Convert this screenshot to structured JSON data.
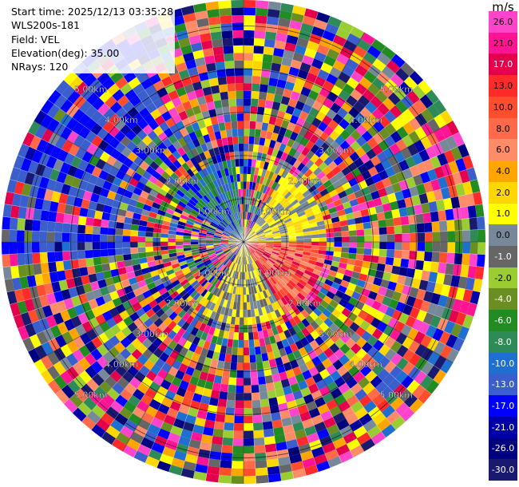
{
  "info": {
    "start_time": "Start time: 2025/12/13 03:35:28",
    "station": "WLS200s-181",
    "field": "Field: VEL",
    "elevation": "Elevation(deg): 35.00",
    "nrays": "NRays: 120"
  },
  "range_labels": [
    "1.00km",
    "2.00km",
    "3.00km",
    "4.00km",
    "5.00km"
  ],
  "colorbar": {
    "unit": "m/s",
    "ticks": [
      "26.0",
      "21.0",
      "17.0",
      "13.0",
      "10.0",
      "8.0",
      "6.0",
      "4.0",
      "2.0",
      "1.0",
      "0.0",
      "-1.0",
      "-2.0",
      "-4.0",
      "-6.0",
      "-8.0",
      "-10.0",
      "-13.0",
      "-17.0",
      "-21.0",
      "-26.0",
      "-30.0"
    ],
    "colors": [
      "#ff44cc",
      "#ff1493",
      "#e4004c",
      "#ff2a2a",
      "#ff4d2e",
      "#ff6a4a",
      "#ff8c69",
      "#ffa500",
      "#ffd700",
      "#ffff00",
      "#778899",
      "#666666",
      "#9acd32",
      "#6b8e23",
      "#228b22",
      "#2e8b57",
      "#1e6fd0",
      "#3a5fcd",
      "#0000ff",
      "#0000a8",
      "#000080",
      "#191970"
    ]
  },
  "chart_data": {
    "type": "ppi",
    "field": "VEL",
    "unit": "m/s",
    "elevation_deg": 35.0,
    "n_rays": 120,
    "max_range_km": 5.6,
    "range_rings_km": [
      1,
      2,
      3,
      4,
      5
    ],
    "radial_lines": true
  }
}
